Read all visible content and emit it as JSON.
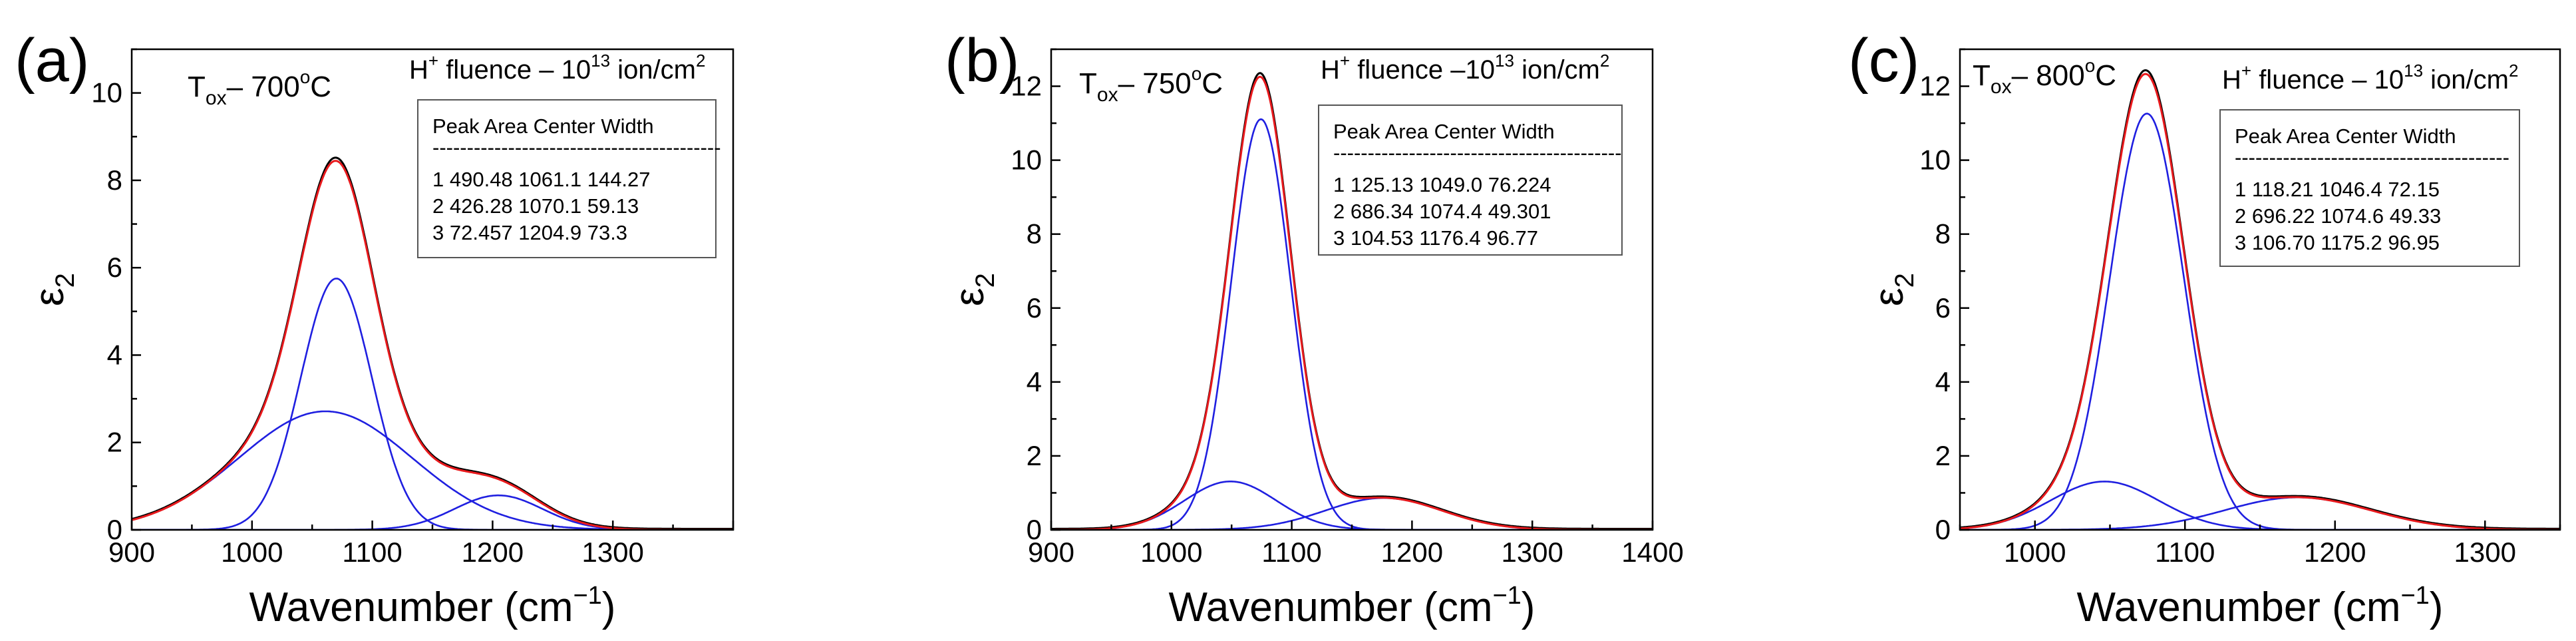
{
  "chart_data": [
    {
      "type": "line",
      "panel_label": "(a)",
      "xlabel_main": "Wavenumber (cm",
      "xlabel_sup": "−1",
      "xlabel_end": ")",
      "ylabel_main": "ε",
      "ylabel_sub": "2",
      "xlim": [
        900,
        1400
      ],
      "ylim": [
        0,
        11
      ],
      "xticks": [
        900,
        1000,
        1100,
        1200,
        1300
      ],
      "yticks": [
        0,
        2,
        4,
        6,
        8,
        10
      ],
      "tox_label": {
        "main": "T",
        "sub": "ox",
        "rest": "– 700",
        "deg": "o",
        "unit": "C"
      },
      "fluence_label": {
        "h": "H",
        "hsup": "+",
        "mid": " fluence – 10",
        "exp": "13",
        "rest": " ion/cm",
        "sq": "2"
      },
      "table": {
        "header": "Peak  Area  Center  Width",
        "separator": "------------------------------------------",
        "rows": [
          "1  490.48  1061.1  144.27",
          "2  426.28  1070.1  59.13",
          "3  72.457  1204.9  73.3"
        ]
      },
      "series": [
        {
          "name": "Peak 1",
          "area": 490.48,
          "center": 1061.1,
          "width": 144.27,
          "color": "#1f1fe0"
        },
        {
          "name": "Peak 2",
          "area": 426.28,
          "center": 1070.1,
          "width": 59.13,
          "color": "#1f1fe0"
        },
        {
          "name": "Peak 3",
          "area": 72.457,
          "center": 1204.9,
          "width": 73.3,
          "color": "#1f1fe0"
        }
      ],
      "envelope_color": "#e8191c",
      "data_color": "#000000"
    },
    {
      "type": "line",
      "panel_label": "(b)",
      "xlabel_main": "Wavenumber (cm",
      "xlabel_sup": "−1",
      "xlabel_end": ")",
      "ylabel_main": "ε",
      "ylabel_sub": "2",
      "xlim": [
        900,
        1400
      ],
      "ylim": [
        0,
        13
      ],
      "xticks": [
        900,
        1000,
        1100,
        1200,
        1300,
        1400
      ],
      "yticks": [
        0,
        2,
        4,
        6,
        8,
        10,
        12
      ],
      "tox_label": {
        "main": "T",
        "sub": "ox",
        "rest": "– 750",
        "deg": "o",
        "unit": "C"
      },
      "fluence_label": {
        "h": "H",
        "hsup": "+",
        "mid": " fluence –10",
        "exp": "13",
        "rest": " ion/cm",
        "sq": "2"
      },
      "table": {
        "header": "Peak  Area  Center  Width",
        "separator": "------------------------------------------",
        "rows": [
          "1  125.13  1049.0  76.224",
          "2  686.34  1074.4  49.301",
          "3  104.53  1176.4  96.77"
        ]
      },
      "series": [
        {
          "name": "Peak 1",
          "area": 125.13,
          "center": 1049.0,
          "width": 76.224,
          "color": "#1f1fe0"
        },
        {
          "name": "Peak 2",
          "area": 686.34,
          "center": 1074.4,
          "width": 49.301,
          "color": "#1f1fe0"
        },
        {
          "name": "Peak 3",
          "area": 104.53,
          "center": 1176.4,
          "width": 96.77,
          "color": "#1f1fe0"
        }
      ],
      "envelope_color": "#e8191c",
      "data_color": "#000000"
    },
    {
      "type": "line",
      "panel_label": "(c)",
      "xlabel_main": "Wavenumber (cm",
      "xlabel_sup": "−1",
      "xlabel_end": ")",
      "ylabel_main": "ε",
      "ylabel_sub": "2",
      "xlim": [
        950,
        1350
      ],
      "ylim": [
        0,
        13
      ],
      "xticks": [
        1000,
        1100,
        1200,
        1300
      ],
      "yticks": [
        0,
        2,
        4,
        6,
        8,
        10,
        12
      ],
      "tox_label": {
        "main": "T",
        "sub": "ox",
        "rest": "– 800",
        "deg": "o",
        "unit": "C"
      },
      "fluence_label": {
        "h": "H",
        "hsup": "+",
        "mid": " fluence – 10",
        "exp": "13",
        "rest": " ion/cm",
        "sq": "2"
      },
      "table": {
        "header": "Peak  Area  Center  Width",
        "separator": "----------------------------------------",
        "rows": [
          "1  118.21  1046.4  72.15",
          "2  696.22  1074.6  49.33",
          "3  106.70   1175.2  96.95"
        ]
      },
      "series": [
        {
          "name": "Peak 1",
          "area": 118.21,
          "center": 1046.4,
          "width": 72.15,
          "color": "#1f1fe0"
        },
        {
          "name": "Peak 2",
          "area": 696.22,
          "center": 1074.6,
          "width": 49.33,
          "color": "#1f1fe0"
        },
        {
          "name": "Peak 3",
          "area": 106.7,
          "center": 1175.2,
          "width": 96.95,
          "color": "#1f1fe0"
        }
      ],
      "envelope_color": "#e8191c",
      "data_color": "#000000"
    }
  ]
}
